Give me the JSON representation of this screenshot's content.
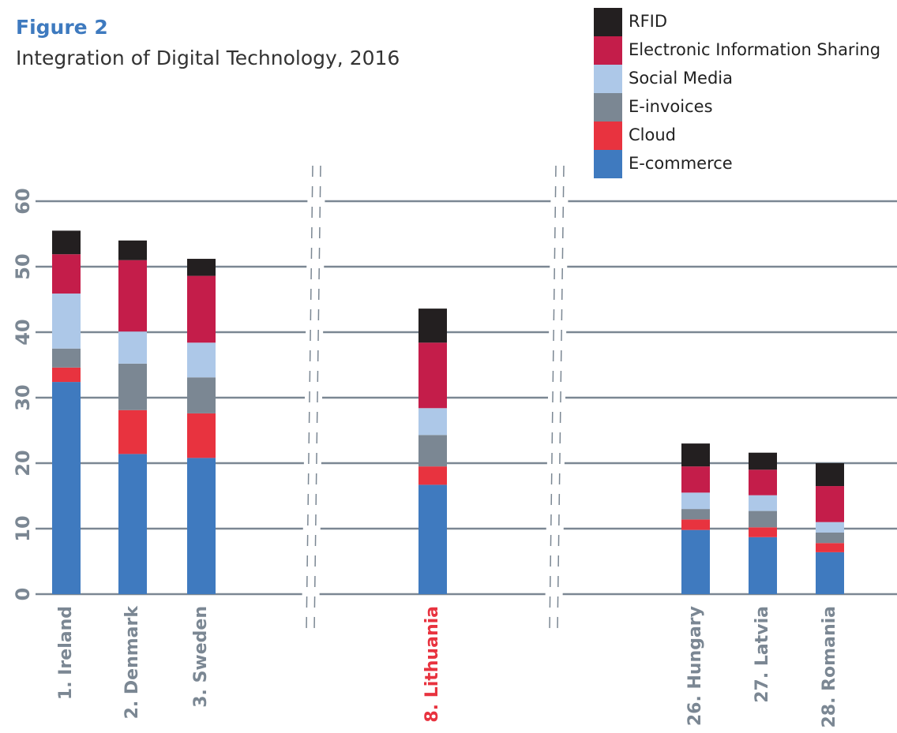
{
  "chart_data": {
    "type": "stacked_bar",
    "title": "Figure 2",
    "subtitle": "Integration of Digital Technology, 2016",
    "categories": [
      "1. Ireland",
      "2. Denmark",
      "3. Sweden",
      "8. Lithuania",
      "26. Hungary",
      "27. Latvia",
      "28. Romania"
    ],
    "category_colors": [
      "#7b8793",
      "#7b8793",
      "#7b8793",
      "#e8333f",
      "#7b8793",
      "#7b8793",
      "#7b8793"
    ],
    "series": [
      {
        "name": "E-commerce",
        "color": "#3f7abf",
        "values": [
          32.4,
          21.4,
          20.8,
          16.7,
          9.8,
          8.7,
          6.4
        ]
      },
      {
        "name": "Cloud",
        "color": "#e8333f",
        "values": [
          2.2,
          6.7,
          6.8,
          2.8,
          1.6,
          1.5,
          1.4
        ]
      },
      {
        "name": "E-invoices",
        "color": "#7b8793",
        "values": [
          2.9,
          7.1,
          5.5,
          4.8,
          1.6,
          2.5,
          1.6
        ]
      },
      {
        "name": "Social Media",
        "color": "#adc8e8",
        "values": [
          8.4,
          4.9,
          5.3,
          4.1,
          2.5,
          2.4,
          1.6
        ]
      },
      {
        "name": "Electronic Information Sharing",
        "color": "#c41d4a",
        "values": [
          6.0,
          10.9,
          10.2,
          10.0,
          4.0,
          3.9,
          5.5
        ]
      },
      {
        "name": "RFID",
        "color": "#231f20",
        "values": [
          3.6,
          3.0,
          2.6,
          5.2,
          3.5,
          2.6,
          3.5
        ]
      }
    ],
    "ylim": [
      0,
      60
    ],
    "yticks": [
      0,
      10,
      20,
      30,
      40,
      50,
      60
    ],
    "grid": true
  }
}
